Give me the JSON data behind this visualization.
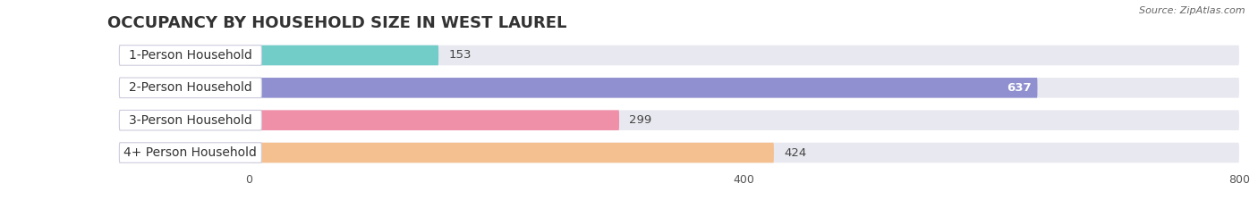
{
  "title": "OCCUPANCY BY HOUSEHOLD SIZE IN WEST LAUREL",
  "source": "Source: ZipAtlas.com",
  "categories": [
    "1-Person Household",
    "2-Person Household",
    "3-Person Household",
    "4+ Person Household"
  ],
  "values": [
    153,
    637,
    299,
    424
  ],
  "bar_colors": [
    "#72cdc8",
    "#9090d0",
    "#f090a8",
    "#f5c090"
  ],
  "label_colors": [
    "#333333",
    "#ffffff",
    "#333333",
    "#333333"
  ],
  "xlim": [
    0,
    800
  ],
  "xticks": [
    0,
    400,
    800
  ],
  "bar_height": 0.62,
  "background_color": "#ffffff",
  "bar_bg_color": "#e8e8f0",
  "title_fontsize": 13,
  "label_fontsize": 10,
  "value_fontsize": 9.5
}
